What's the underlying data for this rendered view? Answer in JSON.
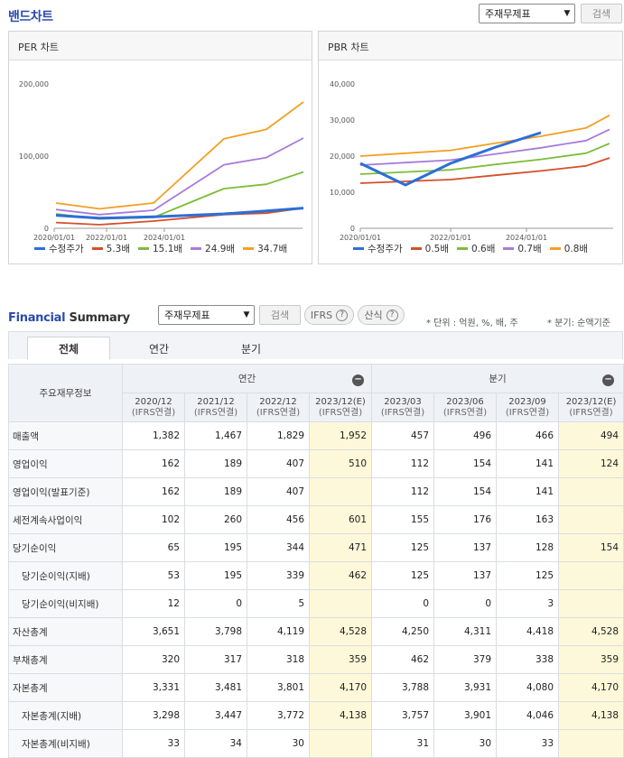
{
  "top": {
    "title": "밴드차트",
    "select_value": "주재무제표",
    "search_label": "검색"
  },
  "per": {
    "title": "PER 차트",
    "yticks": [
      "200,000",
      "100,000",
      "0"
    ],
    "xticks": [
      "2020/01/01",
      "2022/01/01",
      "2024/01/01"
    ],
    "legend": [
      {
        "name": "수정주가",
        "color": "#2d6fd6"
      },
      {
        "name": "5.3배",
        "color": "#d4502a"
      },
      {
        "name": "15.1배",
        "color": "#7dbd3a"
      },
      {
        "name": "24.9배",
        "color": "#a97bd8"
      },
      {
        "name": "34.7배",
        "color": "#f2a023"
      }
    ]
  },
  "pbr": {
    "title": "PBR 차트",
    "yticks": [
      "40,000",
      "30,000",
      "20,000",
      "10,000",
      "0"
    ],
    "xticks": [
      "2020/01/01",
      "2022/01/01",
      "2024/01/01"
    ],
    "legend": [
      {
        "name": "수정주가",
        "color": "#2d6fd6"
      },
      {
        "name": "0.5배",
        "color": "#d4502a"
      },
      {
        "name": "0.6배",
        "color": "#7dbd3a"
      },
      {
        "name": "0.7배",
        "color": "#a97bd8"
      },
      {
        "name": "0.8배",
        "color": "#f2a023"
      }
    ]
  },
  "chart_data": [
    {
      "type": "line",
      "title": "PER 차트",
      "x": [
        "2020/01",
        "2020/04",
        "2021/12",
        "2023/12",
        "2024/10",
        "2025/10"
      ],
      "ylim": [
        0,
        200000
      ],
      "series": [
        {
          "name": "5.3배",
          "values": [
            8000,
            5000,
            10000,
            19000,
            21000,
            28000
          ]
        },
        {
          "name": "15.1배",
          "values": [
            20000,
            13000,
            15000,
            55000,
            61000,
            78000
          ]
        },
        {
          "name": "24.9배",
          "values": [
            26000,
            19000,
            25000,
            88000,
            98000,
            125000
          ]
        },
        {
          "name": "34.7배",
          "values": [
            35000,
            27000,
            35000,
            124000,
            137000,
            175000
          ]
        },
        {
          "name": "수정주가",
          "values": [
            18000,
            14000,
            16000,
            20000,
            24000,
            28000
          ]
        }
      ]
    },
    {
      "type": "line",
      "title": "PBR 차트",
      "x": [
        "2020/01",
        "2021/01",
        "2022/01",
        "2023/01",
        "2024/01",
        "2025/01",
        "2025/10"
      ],
      "ylim": [
        0,
        40000
      ],
      "series": [
        {
          "name": "0.5배",
          "values": [
            12500,
            13000,
            13500,
            14700,
            15900,
            17300,
            19500
          ]
        },
        {
          "name": "0.6배",
          "values": [
            15000,
            15600,
            16200,
            17700,
            19100,
            20800,
            23500
          ]
        },
        {
          "name": "0.7배",
          "values": [
            17500,
            18200,
            18900,
            20600,
            22300,
            24300,
            27400
          ]
        },
        {
          "name": "0.8배",
          "values": [
            20000,
            20800,
            21600,
            23600,
            25500,
            27800,
            31300
          ]
        },
        {
          "name": "수정주가",
          "values": [
            18000,
            12000,
            18000,
            22500,
            26500,
            null,
            null
          ]
        }
      ]
    }
  ],
  "summary": {
    "title_a": "Financial",
    "title_b": " Summary",
    "select_value": "주재무제표",
    "search_label": "검색",
    "ifrs_label": "IFRS",
    "formula_label": "산식",
    "unit_note": "* 단위 : 억원, %, 배, 주",
    "quarter_note": "* 분기: 순액기준",
    "tabs": [
      "전체",
      "연간",
      "분기"
    ],
    "head": {
      "item_label": "주요재무정보",
      "annual": "연간",
      "quarter": "분기",
      "periods": [
        {
          "date": "2020/12",
          "basis": "(IFRS연결)"
        },
        {
          "date": "2021/12",
          "basis": "(IFRS연결)"
        },
        {
          "date": "2022/12",
          "basis": "(IFRS연결)"
        },
        {
          "date": "2023/12(E)",
          "basis": "(IFRS연결)"
        },
        {
          "date": "2023/03",
          "basis": "(IFRS연결)"
        },
        {
          "date": "2023/06",
          "basis": "(IFRS연결)"
        },
        {
          "date": "2023/09",
          "basis": "(IFRS연결)"
        },
        {
          "date": "2023/12(E)",
          "basis": "(IFRS연결)"
        }
      ]
    },
    "rows": [
      {
        "label": "매출액",
        "sub": false,
        "values": [
          "1,382",
          "1,467",
          "1,829",
          "1,952",
          "457",
          "496",
          "466",
          "494"
        ]
      },
      {
        "label": "영업이익",
        "sub": false,
        "values": [
          "162",
          "189",
          "407",
          "510",
          "112",
          "154",
          "141",
          "124"
        ]
      },
      {
        "label": "영업이익(발표기준)",
        "sub": false,
        "values": [
          "162",
          "189",
          "407",
          "",
          "112",
          "154",
          "141",
          ""
        ]
      },
      {
        "label": "세전계속사업이익",
        "sub": false,
        "values": [
          "102",
          "260",
          "456",
          "601",
          "155",
          "176",
          "163",
          ""
        ]
      },
      {
        "label": "당기순이익",
        "sub": false,
        "values": [
          "65",
          "195",
          "344",
          "471",
          "125",
          "137",
          "128",
          "154"
        ]
      },
      {
        "label": "당기순이익(지배)",
        "sub": true,
        "values": [
          "53",
          "195",
          "339",
          "462",
          "125",
          "137",
          "125",
          ""
        ]
      },
      {
        "label": "당기순이익(비지배)",
        "sub": true,
        "values": [
          "12",
          "0",
          "5",
          "",
          "0",
          "0",
          "3",
          ""
        ]
      },
      {
        "label": "자산총계",
        "sub": false,
        "values": [
          "3,651",
          "3,798",
          "4,119",
          "4,528",
          "4,250",
          "4,311",
          "4,418",
          "4,528"
        ]
      },
      {
        "label": "부채총계",
        "sub": false,
        "values": [
          "320",
          "317",
          "318",
          "359",
          "462",
          "379",
          "338",
          "359"
        ]
      },
      {
        "label": "자본총계",
        "sub": false,
        "values": [
          "3,331",
          "3,481",
          "3,801",
          "4,170",
          "3,788",
          "3,931",
          "4,080",
          "4,170"
        ]
      },
      {
        "label": "자본총계(지배)",
        "sub": true,
        "values": [
          "3,298",
          "3,447",
          "3,772",
          "4,138",
          "3,757",
          "3,901",
          "4,046",
          "4,138"
        ]
      },
      {
        "label": "자본총계(비지배)",
        "sub": true,
        "values": [
          "33",
          "34",
          "30",
          "",
          "31",
          "30",
          "33",
          ""
        ]
      }
    ]
  }
}
